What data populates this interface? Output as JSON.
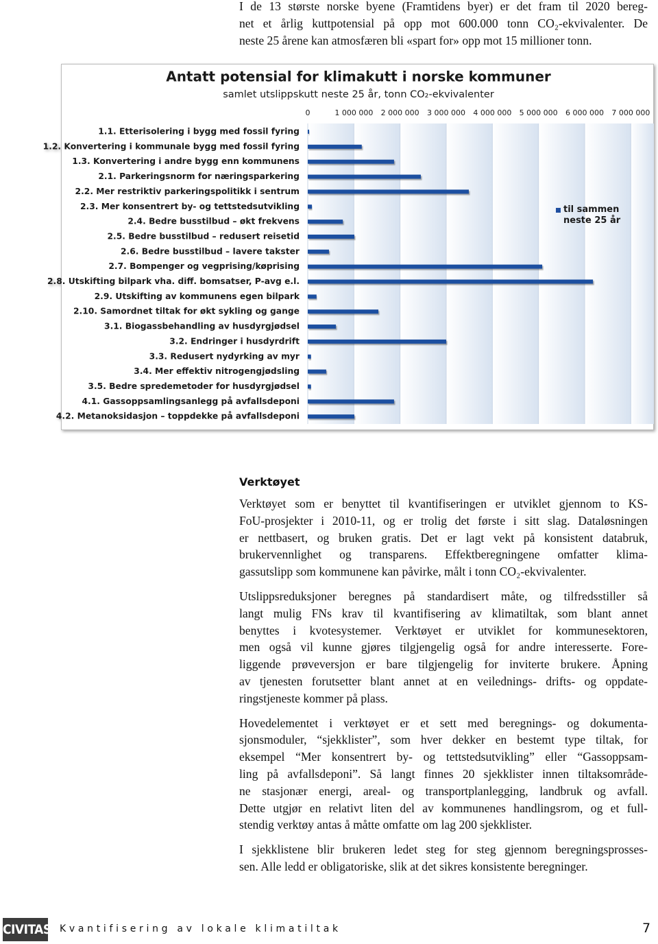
{
  "intro": {
    "lines": [
      "I de 13 største norske byene (Framtidens byer) er det fram til 2020 bereg-",
      "net et årlig kuttpotensial på opp mot 600.000 tonn CO₂-ekvivalenter. De",
      "neste 25 årene kan atmosfæren bli «spart for» opp mot 15 millioner tonn."
    ]
  },
  "chart_data": {
    "type": "bar",
    "orientation": "horizontal",
    "title": "Antatt potensial for klimakutt i norske kommuner",
    "subtitle": "samlet utslippskutt neste 25 år, tonn CO₂-ekvivalenter",
    "categories": [
      "1.1. Etterisolering i bygg med fossil fyring",
      "1.2. Konvertering i kommunale bygg med fossil fyring",
      "1.3. Konvertering i andre bygg enn kommunens",
      "2.1. Parkeringsnorm for næringsparkering",
      "2.2. Mer restriktiv parkeringspolitikk i sentrum",
      "2.3. Mer konsentrert by- og tettstedsutvikling",
      "2.4. Bedre busstilbud – økt frekvens",
      "2.5. Bedre busstilbud – redusert reisetid",
      "2.6. Bedre busstilbud – lavere takster",
      "2.7. Bompenger og vegprising/køprising",
      "2.8. Utskifting bilpark vha. diff. bomsatser, P-avg e.l.",
      "2.9. Utskifting av kommunens egen bilpark",
      "2.10. Samordnet tiltak for økt sykling og gange",
      "3.1. Biogassbehandling av husdyrgjødsel",
      "3.2. Endringer i husdyrdrift",
      "3.3. Redusert nydyrking av myr",
      "3.4. Mer effektiv nitrogengjødsling",
      "3.5. Bedre spredemetoder for husdyrgjødsel",
      "4.1. Gassoppsamlingsanlegg på avfallsdeponi",
      "4.2. Metanoksidasjon – toppdekke på avfallsdeponi"
    ],
    "series": [
      {
        "name": "til sammen neste 25 år",
        "color": "#1f4fa0",
        "values": [
          30000,
          1170000,
          1870000,
          2450000,
          3490000,
          90000,
          760000,
          1010000,
          460000,
          5080000,
          6180000,
          190000,
          1530000,
          610000,
          3000000,
          70000,
          400000,
          70000,
          1870000,
          1010000
        ]
      }
    ],
    "xlim": [
      0,
      7500000
    ],
    "xticks": [
      0,
      {
        "value": 1000000,
        "label": "1 000 000"
      },
      {
        "value": 2000000,
        "label": "2 000 000"
      },
      {
        "value": 3000000,
        "label": "3 000 000"
      },
      {
        "value": 4000000,
        "label": "4 000 000"
      },
      {
        "value": 5000000,
        "label": "5 000 000"
      },
      {
        "value": 6000000,
        "label": "6 000 000"
      },
      {
        "value": 7000000,
        "label": "7 000 000"
      }
    ],
    "grid": true,
    "legend": "right"
  },
  "section": {
    "heading": "Verktøyet",
    "paragraphs": [
      {
        "lines": [
          "Verktøyet som er benyttet til kvantifiseringen er utviklet gjennom to KS-",
          "FoU-prosjekter i 2010-11, og er trolig det første i sitt slag. Dataløsningen",
          "er nettbasert, og bruken gratis. Det er lagt vekt på konsistent databruk,",
          "brukervennlighet og transparens. Effektberegningene omfatter klima-",
          "gassutslipp som kommunene kan påvirke, målt i tonn CO₂-ekvivalenter."
        ]
      },
      {
        "lines": [
          "Utslippsreduksjoner beregnes på standardisert måte, og tilfredsstiller så",
          "langt mulig FNs krav til kvantifisering av klimatiltak, som blant annet",
          "benyttes i kvotesystemer. Verktøyet er utviklet for kommunesektoren,",
          "men også vil kunne gjøres tilgjengelig også for andre interesserte. Fore-",
          "liggende prøveversjon er bare tilgjengelig for inviterte brukere. Åpning",
          "av tjenesten forutsetter blant annet at en veilednings- drifts- og oppdate-",
          "ringstjeneste kommer på plass."
        ]
      },
      {
        "lines": [
          "Hovedelementet i verktøyet er et sett med beregnings- og dokumenta-",
          "sjonsmoduler, “sjekklister”, som hver dekker en bestemt type tiltak, for",
          "eksempel “Mer konsentrert by- og tettstedsutvikling” eller “Gassoppsam-",
          "ling på avfallsdeponi”. Så langt finnes 20 sjekklister innen tiltaksområde-",
          "ne stasjonær energi, areal- og transportplanlegging, landbruk og avfall.",
          "Dette utgjør en relativt liten del av kommunenes handlingsrom, og et full-",
          "stendig verktøy antas å måtte omfatte om lag 200 sjekklister."
        ]
      },
      {
        "lines": [
          "I sjekklistene blir brukeren ledet steg for steg gjennom beregningsprosses-",
          "sen. Alle ledd er obligatoriske, slik at det sikres konsistente beregninger."
        ]
      }
    ]
  },
  "footer": {
    "logo": "CIVITAS",
    "title": "Kvantifisering av lokale klimatiltak",
    "page": "7"
  }
}
